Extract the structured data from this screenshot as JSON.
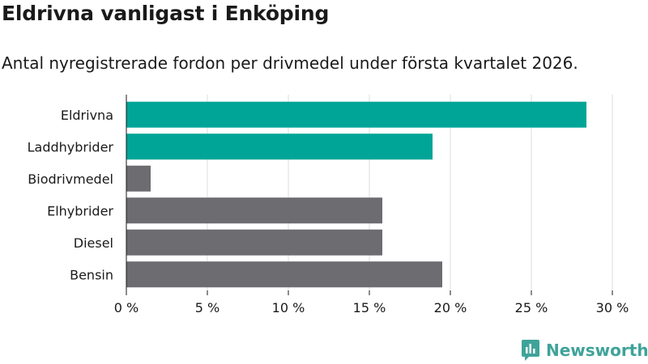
{
  "header": {
    "title": "Eldrivna vanligast i Enköping",
    "subtitle": "Antal nyregistrerade fordon per drivmedel under första kvartalet 2026."
  },
  "brand": {
    "name": "Newsworthy",
    "color": "#3fa39a"
  },
  "colors": {
    "highlight": "#00a598",
    "default": "#6d6c71",
    "grid": "#dcdcdc"
  },
  "chart_data": {
    "type": "bar",
    "orientation": "horizontal",
    "title": "Eldrivna vanligast i Enköping",
    "subtitle": "Antal nyregistrerade fordon per drivmedel under första kvartalet 2026.",
    "categories": [
      "Eldrivna",
      "Laddhybrider",
      "Biodrivmedel",
      "Elhybrider",
      "Diesel",
      "Bensin"
    ],
    "values": [
      28.4,
      18.9,
      1.5,
      15.8,
      15.8,
      19.5
    ],
    "highlighted": [
      true,
      true,
      false,
      false,
      false,
      false
    ],
    "xlim": [
      0,
      30
    ],
    "xticks": [
      0,
      5,
      10,
      15,
      20,
      25,
      30
    ],
    "xtick_labels": [
      "0 %",
      "5 %",
      "10 %",
      "15 %",
      "20 %",
      "25 %",
      "30 %"
    ],
    "xlabel": "",
    "ylabel": "",
    "grid": true
  }
}
